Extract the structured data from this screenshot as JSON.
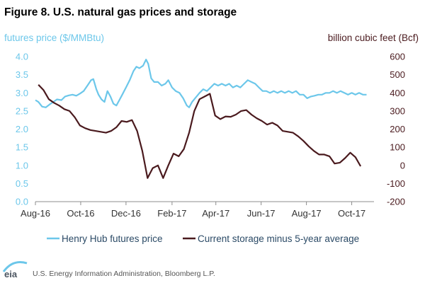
{
  "chart_data": {
    "type": "line",
    "title": "Figure 8. U.S. natural gas prices and storage",
    "ylabel_left": "futures price ($/MMBtu)",
    "ylabel_right": "billion cubic feet (Bcf)",
    "ylim_left": [
      0,
      4
    ],
    "ylim_right": [
      -200,
      600
    ],
    "yticks_left": [
      "0.0",
      "0.5",
      "1.0",
      "1.5",
      "2.0",
      "2.5",
      "3.0",
      "3.5",
      "4.0"
    ],
    "yticks_right": [
      "-200",
      "-100",
      "0",
      "100",
      "200",
      "300",
      "400",
      "500",
      "600"
    ],
    "xlim": [
      "2016-08-01",
      "2017-10-31"
    ],
    "xticks": [
      {
        "label": "Aug-16",
        "date": "2016-08-01"
      },
      {
        "label": "Oct-16",
        "date": "2016-10-01"
      },
      {
        "label": "Dec-16",
        "date": "2016-12-01"
      },
      {
        "label": "Feb-17",
        "date": "2017-02-01"
      },
      {
        "label": "Apr-17",
        "date": "2017-04-01"
      },
      {
        "label": "Jun-17",
        "date": "2017-06-01"
      },
      {
        "label": "Aug-17",
        "date": "2017-08-01"
      },
      {
        "label": "Oct-17",
        "date": "2017-10-01"
      }
    ],
    "grid": false,
    "legend_placement": "bottom",
    "series": [
      {
        "name": "Henry Hub futures price",
        "axis": "left",
        "color": "#6cc7ea",
        "points": [
          [
            "2016-08-01",
            2.8
          ],
          [
            "2016-08-05",
            2.75
          ],
          [
            "2016-08-10",
            2.62
          ],
          [
            "2016-08-15",
            2.6
          ],
          [
            "2016-08-20",
            2.68
          ],
          [
            "2016-08-25",
            2.75
          ],
          [
            "2016-08-30",
            2.82
          ],
          [
            "2016-09-05",
            2.8
          ],
          [
            "2016-09-10",
            2.9
          ],
          [
            "2016-09-15",
            2.93
          ],
          [
            "2016-09-20",
            2.95
          ],
          [
            "2016-09-25",
            2.92
          ],
          [
            "2016-09-30",
            2.98
          ],
          [
            "2016-10-05",
            3.05
          ],
          [
            "2016-10-10",
            3.2
          ],
          [
            "2016-10-15",
            3.35
          ],
          [
            "2016-10-18",
            3.38
          ],
          [
            "2016-10-22",
            3.1
          ],
          [
            "2016-10-25",
            2.95
          ],
          [
            "2016-10-29",
            2.82
          ],
          [
            "2016-11-02",
            2.75
          ],
          [
            "2016-11-06",
            3.05
          ],
          [
            "2016-11-10",
            2.9
          ],
          [
            "2016-11-14",
            2.7
          ],
          [
            "2016-11-18",
            2.65
          ],
          [
            "2016-11-22",
            2.8
          ],
          [
            "2016-11-26",
            2.95
          ],
          [
            "2016-12-01",
            3.15
          ],
          [
            "2016-12-06",
            3.35
          ],
          [
            "2016-12-11",
            3.6
          ],
          [
            "2016-12-15",
            3.72
          ],
          [
            "2016-12-19",
            3.68
          ],
          [
            "2016-12-24",
            3.75
          ],
          [
            "2016-12-28",
            3.92
          ],
          [
            "2016-12-31",
            3.8
          ],
          [
            "2017-01-04",
            3.4
          ],
          [
            "2017-01-08",
            3.3
          ],
          [
            "2017-01-13",
            3.3
          ],
          [
            "2017-01-18",
            3.2
          ],
          [
            "2017-01-23",
            3.25
          ],
          [
            "2017-01-27",
            3.35
          ],
          [
            "2017-02-01",
            3.15
          ],
          [
            "2017-02-06",
            3.05
          ],
          [
            "2017-02-11",
            3.0
          ],
          [
            "2017-02-16",
            2.85
          ],
          [
            "2017-02-21",
            2.65
          ],
          [
            "2017-02-24",
            2.6
          ],
          [
            "2017-02-28",
            2.75
          ],
          [
            "2017-03-04",
            2.85
          ],
          [
            "2017-03-10",
            3.0
          ],
          [
            "2017-03-15",
            3.1
          ],
          [
            "2017-03-20",
            3.05
          ],
          [
            "2017-03-25",
            3.15
          ],
          [
            "2017-03-30",
            3.25
          ],
          [
            "2017-04-04",
            3.2
          ],
          [
            "2017-04-09",
            3.25
          ],
          [
            "2017-04-14",
            3.2
          ],
          [
            "2017-04-19",
            3.25
          ],
          [
            "2017-04-24",
            3.15
          ],
          [
            "2017-04-29",
            3.2
          ],
          [
            "2017-05-04",
            3.15
          ],
          [
            "2017-05-09",
            3.25
          ],
          [
            "2017-05-14",
            3.35
          ],
          [
            "2017-05-19",
            3.3
          ],
          [
            "2017-05-24",
            3.25
          ],
          [
            "2017-05-29",
            3.15
          ],
          [
            "2017-06-03",
            3.05
          ],
          [
            "2017-06-08",
            3.05
          ],
          [
            "2017-06-13",
            3.0
          ],
          [
            "2017-06-18",
            3.05
          ],
          [
            "2017-06-23",
            3.0
          ],
          [
            "2017-06-28",
            3.05
          ],
          [
            "2017-07-03",
            3.0
          ],
          [
            "2017-07-08",
            3.05
          ],
          [
            "2017-07-13",
            3.0
          ],
          [
            "2017-07-18",
            3.05
          ],
          [
            "2017-07-23",
            2.95
          ],
          [
            "2017-07-28",
            2.95
          ],
          [
            "2017-08-02",
            2.85
          ],
          [
            "2017-08-07",
            2.9
          ],
          [
            "2017-08-12",
            2.92
          ],
          [
            "2017-08-17",
            2.95
          ],
          [
            "2017-08-22",
            2.95
          ],
          [
            "2017-08-27",
            3.0
          ],
          [
            "2017-09-01",
            3.0
          ],
          [
            "2017-09-06",
            3.05
          ],
          [
            "2017-09-11",
            3.0
          ],
          [
            "2017-09-16",
            3.05
          ],
          [
            "2017-09-21",
            3.0
          ],
          [
            "2017-09-26",
            2.95
          ],
          [
            "2017-10-01",
            3.0
          ],
          [
            "2017-10-06",
            2.95
          ],
          [
            "2017-10-11",
            3.0
          ],
          [
            "2017-10-16",
            2.95
          ],
          [
            "2017-10-21",
            2.95
          ]
        ]
      },
      {
        "name": "Current storage minus 5-year average",
        "axis": "right",
        "color": "#4a1a1e",
        "points": [
          [
            "2016-08-05",
            445
          ],
          [
            "2016-08-12",
            415
          ],
          [
            "2016-08-19",
            365
          ],
          [
            "2016-08-26",
            345
          ],
          [
            "2016-09-02",
            330
          ],
          [
            "2016-09-09",
            310
          ],
          [
            "2016-09-16",
            300
          ],
          [
            "2016-09-23",
            265
          ],
          [
            "2016-09-30",
            220
          ],
          [
            "2016-10-07",
            205
          ],
          [
            "2016-10-14",
            195
          ],
          [
            "2016-10-21",
            190
          ],
          [
            "2016-10-28",
            185
          ],
          [
            "2016-11-04",
            180
          ],
          [
            "2016-11-11",
            190
          ],
          [
            "2016-11-18",
            210
          ],
          [
            "2016-11-25",
            245
          ],
          [
            "2016-12-02",
            240
          ],
          [
            "2016-12-09",
            250
          ],
          [
            "2016-12-16",
            190
          ],
          [
            "2016-12-23",
            80
          ],
          [
            "2016-12-30",
            -70
          ],
          [
            "2017-01-06",
            -15
          ],
          [
            "2017-01-13",
            0
          ],
          [
            "2017-01-20",
            -70
          ],
          [
            "2017-01-27",
            0
          ],
          [
            "2017-02-03",
            65
          ],
          [
            "2017-02-10",
            50
          ],
          [
            "2017-02-17",
            90
          ],
          [
            "2017-02-24",
            180
          ],
          [
            "2017-03-03",
            300
          ],
          [
            "2017-03-10",
            365
          ],
          [
            "2017-03-17",
            380
          ],
          [
            "2017-03-24",
            395
          ],
          [
            "2017-03-31",
            275
          ],
          [
            "2017-04-07",
            255
          ],
          [
            "2017-04-14",
            270
          ],
          [
            "2017-04-21",
            268
          ],
          [
            "2017-04-28",
            280
          ],
          [
            "2017-05-05",
            300
          ],
          [
            "2017-05-12",
            305
          ],
          [
            "2017-05-19",
            280
          ],
          [
            "2017-05-26",
            260
          ],
          [
            "2017-06-02",
            245
          ],
          [
            "2017-06-09",
            225
          ],
          [
            "2017-06-16",
            235
          ],
          [
            "2017-06-23",
            220
          ],
          [
            "2017-06-30",
            190
          ],
          [
            "2017-07-07",
            185
          ],
          [
            "2017-07-14",
            180
          ],
          [
            "2017-07-21",
            160
          ],
          [
            "2017-07-28",
            135
          ],
          [
            "2017-08-04",
            105
          ],
          [
            "2017-08-11",
            80
          ],
          [
            "2017-08-18",
            60
          ],
          [
            "2017-08-25",
            60
          ],
          [
            "2017-09-01",
            50
          ],
          [
            "2017-09-08",
            10
          ],
          [
            "2017-09-15",
            15
          ],
          [
            "2017-09-22",
            40
          ],
          [
            "2017-09-29",
            70
          ],
          [
            "2017-10-06",
            45
          ],
          [
            "2017-10-13",
            -5
          ]
        ]
      }
    ]
  },
  "source": "U.S. Energy Information Administration, Bloomberg L.P.",
  "logo": {
    "text": "eia",
    "icon": "eia-logo-icon"
  },
  "colors": {
    "price_axis": "#6cc7ea",
    "storage_axis": "#4a1a1e",
    "legend_text": "#2b4a66",
    "source_text": "#555555"
  }
}
